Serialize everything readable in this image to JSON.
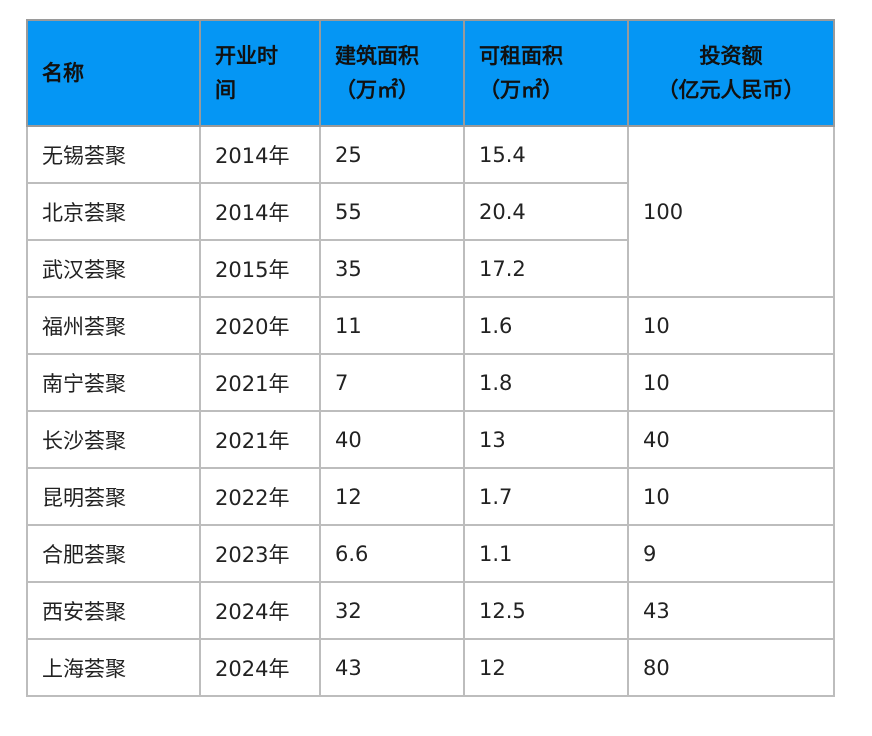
{
  "header": {
    "name": "名称",
    "open_line1": "开业时",
    "open_line2": "间",
    "build_line1": "建筑面积",
    "build_line2": "（万㎡）",
    "lease_line1": "可租面积",
    "lease_line2": "（万㎡）",
    "invest_line1": "投资额",
    "invest_line2": "（亿元人民币）"
  },
  "rows": [
    {
      "name": "无锡荟聚",
      "open": "2014年",
      "build": "25",
      "lease": "15.4",
      "invest": "100"
    },
    {
      "name": "北京荟聚",
      "open": "2014年",
      "build": "55",
      "lease": "20.4"
    },
    {
      "name": "武汉荟聚",
      "open": "2015年",
      "build": "35",
      "lease": "17.2"
    },
    {
      "name": "福州荟聚",
      "open": "2020年",
      "build": "11",
      "lease": "1.6",
      "invest": "10"
    },
    {
      "name": "南宁荟聚",
      "open": "2021年",
      "build": "7",
      "lease": "1.8",
      "invest": "10"
    },
    {
      "name": "长沙荟聚",
      "open": "2021年",
      "build": "40",
      "lease": "13",
      "invest": "40"
    },
    {
      "name": "昆明荟聚",
      "open": "2022年",
      "build": "12",
      "lease": "1.7",
      "invest": "10"
    },
    {
      "name": "合肥荟聚",
      "open": "2023年",
      "build": "6.6",
      "lease": "1.1",
      "invest": "9"
    },
    {
      "name": "西安荟聚",
      "open": "2024年",
      "build": "32",
      "lease": "12.5",
      "invest": "43"
    },
    {
      "name": "上海荟聚",
      "open": "2024年",
      "build": "43",
      "lease": "12",
      "invest": "80"
    }
  ],
  "colors": {
    "header_bg": "#0596f4",
    "border": "#bdbdbd"
  }
}
